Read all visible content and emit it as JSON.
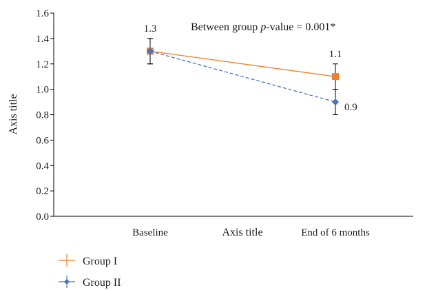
{
  "chart_data": {
    "type": "line",
    "categories": [
      "Baseline",
      "End of 6 months"
    ],
    "xlabel": "Axis title",
    "ylabel": "Axis title",
    "ylim": [
      0,
      1.6
    ],
    "yticks": [
      "0.0",
      "0.2",
      "0.4",
      "0.6",
      "0.8",
      "1.0",
      "1.2",
      "1.4",
      "1.6"
    ],
    "grid": false,
    "legend_placement": "bottom-left",
    "annotation": {
      "prefix": "Between group ",
      "italic": "p",
      "suffix": "-value = 0.001*"
    },
    "series": [
      {
        "name": "Group I",
        "values": [
          1.3,
          1.1
        ],
        "errors": [
          0.1,
          0.1
        ],
        "data_labels": [
          "1.3",
          "1.1"
        ],
        "color": "#f07e26",
        "line_style": "solid",
        "marker": "square"
      },
      {
        "name": "Group II",
        "values": [
          1.3,
          0.9
        ],
        "errors": [
          0.1,
          0.1
        ],
        "data_labels": [
          "",
          "0.9"
        ],
        "color": "#4472c4",
        "line_style": "dashed",
        "marker": "diamond"
      }
    ]
  }
}
